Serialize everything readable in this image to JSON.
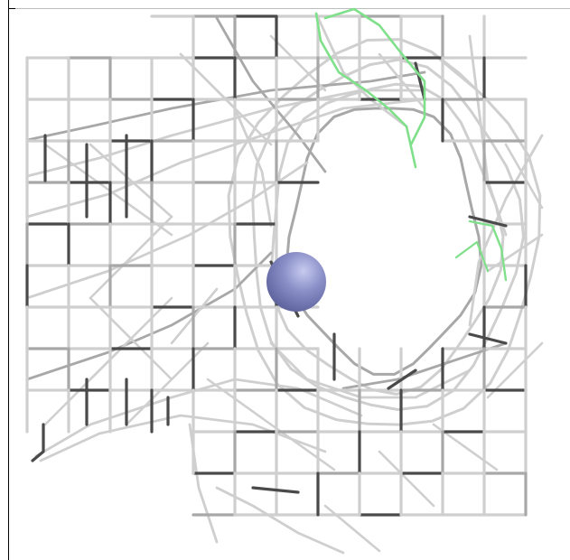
{
  "scene": {
    "background_color": "#ffffff",
    "mesh_color_light": "#cfcfcf",
    "mesh_color_mid": "#a8a8a8",
    "mesh_color_dark": "#4a4a4a",
    "accent_trace_color": "#7fe08a",
    "sphere_color": "#8a8fc8",
    "sphere_highlight_color": "#c7cbef",
    "sphere_shadow_color": "#5a5f9a"
  }
}
